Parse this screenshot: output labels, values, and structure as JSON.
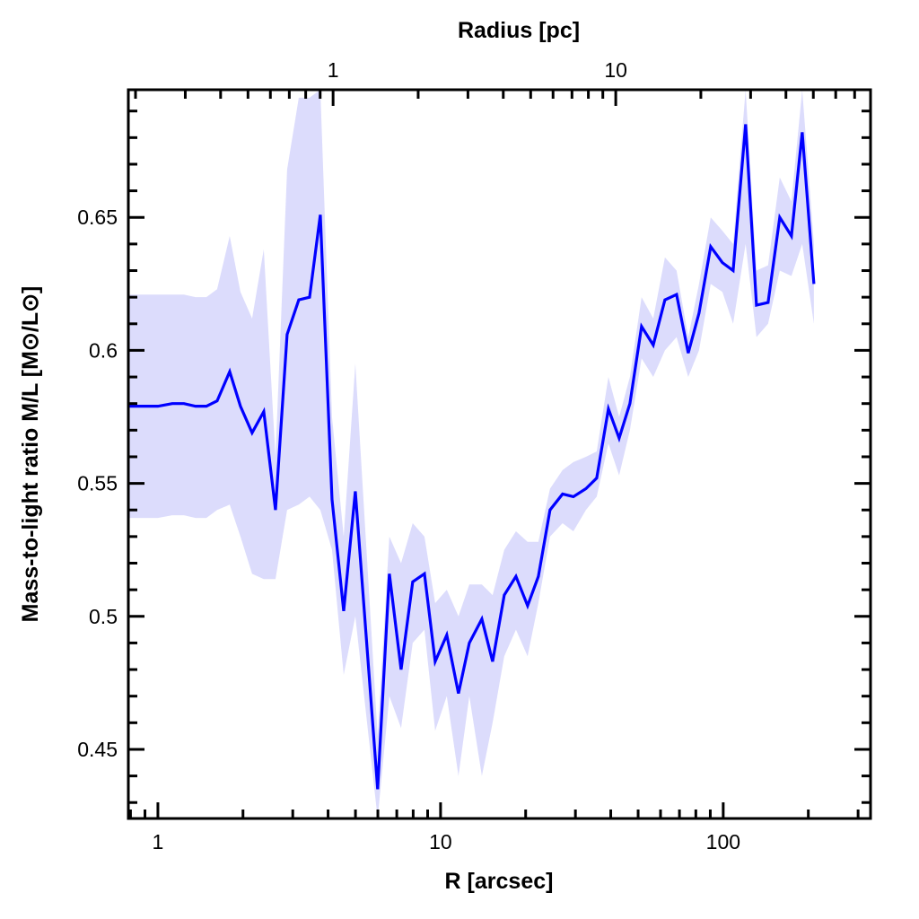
{
  "chart_data": {
    "type": "line",
    "title": "",
    "xlabel": "R [arcsec]",
    "ylabel": "Mass-to-light ratio M/L [M⊙/L⊙]",
    "top_xlabel": "Radius [pc]",
    "xscale": "log",
    "xlim": [
      0.786,
      332
    ],
    "ylim": [
      0.424,
      0.698
    ],
    "x_tick_labels": [
      "1",
      "10",
      "100"
    ],
    "x_ticks": [
      1,
      10,
      100
    ],
    "top_x_tick_labels": [
      "1",
      "10"
    ],
    "top_x_ticks_pc": [
      1,
      10
    ],
    "pc_per_arcsec": 0.24,
    "y_tick_labels": [
      "0.45",
      "0.5",
      "0.55",
      "0.6",
      "0.65"
    ],
    "y_ticks": [
      0.45,
      0.5,
      0.55,
      0.6,
      0.65
    ],
    "grid": false,
    "colors": {
      "line": "#0000ff",
      "band": "#dcdcfc"
    },
    "series": [
      {
        "name": "M/L",
        "x": [
          0.786,
          0.89,
          1.0,
          1.124,
          1.236,
          1.359,
          1.484,
          1.62,
          1.795,
          1.959,
          2.154,
          2.369,
          2.606,
          2.865,
          3.151,
          3.44,
          3.755,
          4.13,
          4.542,
          4.994,
          5.99,
          6.59,
          7.25,
          7.97,
          8.77,
          9.57,
          10.52,
          11.57,
          12.64,
          14.0,
          15.28,
          16.8,
          18.48,
          20.32,
          22.18,
          24.39,
          27.02,
          29.5,
          32.68,
          35.68,
          39.25,
          42.83,
          46.76,
          51.42,
          56.55,
          62.19,
          68.38,
          75.2,
          82.1,
          90.3,
          99.3,
          108.4,
          120.0,
          131.1,
          144.1,
          158.5,
          174.3,
          190.3,
          209.3
        ],
        "y": [
          0.579,
          0.579,
          0.579,
          0.58,
          0.58,
          0.579,
          0.579,
          0.581,
          0.592,
          0.579,
          0.569,
          0.577,
          0.54,
          0.606,
          0.619,
          0.62,
          0.651,
          0.544,
          0.502,
          0.547,
          0.435,
          0.516,
          0.48,
          0.513,
          0.516,
          0.483,
          0.493,
          0.471,
          0.49,
          0.499,
          0.483,
          0.508,
          0.515,
          0.504,
          0.515,
          0.54,
          0.546,
          0.545,
          0.548,
          0.552,
          0.578,
          0.567,
          0.58,
          0.609,
          0.602,
          0.619,
          0.621,
          0.599,
          0.614,
          0.639,
          0.633,
          0.63,
          0.685,
          0.617,
          0.618,
          0.65,
          0.643,
          0.682,
          0.625
        ],
        "lower": [
          0.537,
          0.537,
          0.537,
          0.538,
          0.538,
          0.537,
          0.537,
          0.54,
          0.542,
          0.53,
          0.516,
          0.514,
          0.514,
          0.54,
          0.542,
          0.545,
          0.54,
          0.525,
          0.478,
          0.5,
          0.424,
          0.47,
          0.458,
          0.49,
          0.495,
          0.457,
          0.47,
          0.44,
          0.47,
          0.44,
          0.46,
          0.485,
          0.495,
          0.485,
          0.505,
          0.53,
          0.535,
          0.532,
          0.54,
          0.545,
          0.565,
          0.553,
          0.57,
          0.597,
          0.59,
          0.6,
          0.605,
          0.59,
          0.6,
          0.625,
          0.622,
          0.61,
          0.64,
          0.605,
          0.61,
          0.63,
          0.628,
          0.64,
          0.61
        ],
        "upper": [
          0.621,
          0.621,
          0.621,
          0.621,
          0.621,
          0.62,
          0.62,
          0.623,
          0.643,
          0.622,
          0.612,
          0.638,
          0.56,
          0.668,
          0.695,
          0.695,
          0.698,
          0.575,
          0.53,
          0.595,
          0.455,
          0.53,
          0.52,
          0.535,
          0.53,
          0.505,
          0.51,
          0.5,
          0.512,
          0.512,
          0.508,
          0.525,
          0.532,
          0.528,
          0.528,
          0.548,
          0.555,
          0.558,
          0.56,
          0.562,
          0.59,
          0.575,
          0.59,
          0.62,
          0.612,
          0.635,
          0.63,
          0.605,
          0.625,
          0.65,
          0.645,
          0.64,
          0.698,
          0.63,
          0.632,
          0.665,
          0.656,
          0.698,
          0.64
        ]
      }
    ]
  }
}
